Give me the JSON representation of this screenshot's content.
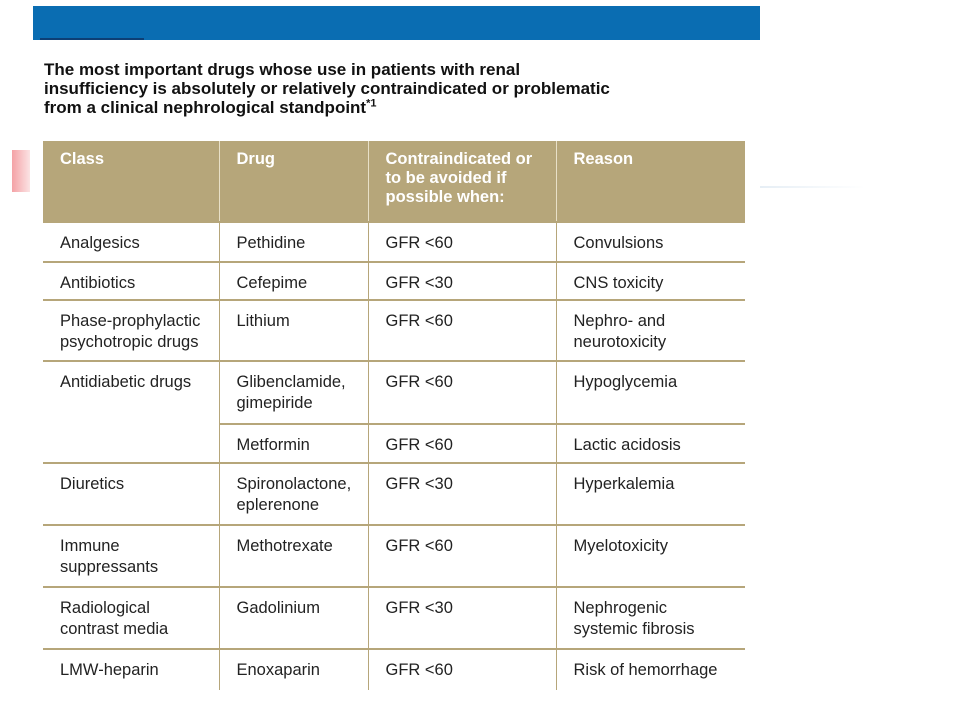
{
  "header": {
    "title": {
      "lines": [
        "The most important drugs whose use in patients with renal",
        "insufficiency is absolutely or relatively contraindicated or problematic",
        "from a clinical nephrological standpoint"
      ],
      "superscript": "*1"
    }
  },
  "table": {
    "columns": [
      "Class",
      "Drug",
      "Contraindicated or\nto be avoided if\npossible when:",
      "Reason"
    ],
    "groups": [
      {
        "class": "Analgesics",
        "rows": [
          [
            "Pethidine",
            "GFR <60",
            "Convulsions"
          ]
        ]
      },
      {
        "class": "Antibiotics",
        "rows": [
          [
            "Cefepime",
            "GFR <30",
            "CNS toxicity"
          ]
        ]
      },
      {
        "class": "Phase-prophylactic\npsychotropic drugs",
        "rows": [
          [
            "Lithium",
            "GFR <60",
            "Nephro- and\nneurotoxicity"
          ]
        ]
      },
      {
        "class": "Antidiabetic drugs",
        "rows": [
          [
            "Glibenclamide,\ngimepiride",
            "GFR <60",
            "Hypoglycemia"
          ],
          [
            "Metformin",
            "GFR <60",
            "Lactic acidosis"
          ]
        ]
      },
      {
        "class": "Diuretics",
        "rows": [
          [
            "Spironolactone,\neplerenone",
            "GFR <30",
            "Hyperkalemia"
          ]
        ]
      },
      {
        "class": "Immune\nsuppressants",
        "rows": [
          [
            "Methotrexate",
            "GFR <60",
            "Myelotoxicity"
          ]
        ]
      },
      {
        "class": "Radiological\ncontrast media",
        "rows": [
          [
            "Gadolinium",
            "GFR <30",
            "Nephrogenic\nsystemic fibrosis"
          ]
        ]
      },
      {
        "class": "LMW-heparin",
        "rows": [
          [
            "Enoxaparin",
            "GFR <60",
            "Risk of hemorrhage"
          ]
        ]
      }
    ]
  }
}
